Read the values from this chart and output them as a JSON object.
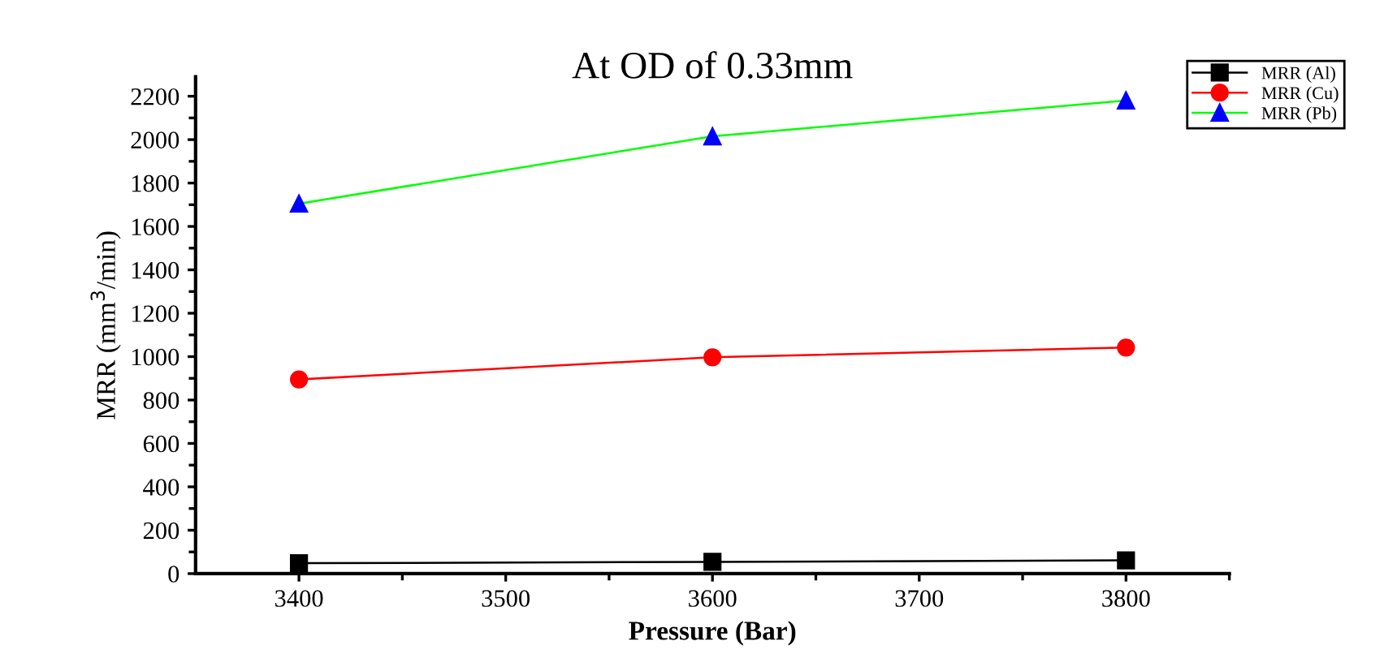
{
  "chart_data": {
    "type": "line",
    "title": "At OD of 0.33mm",
    "xlabel": "Pressure (Bar)",
    "ylabel": "MRR (mm$^{3}$/min)",
    "x": [
      3400,
      3600,
      3800
    ],
    "series": [
      {
        "name": "MRR (Al)",
        "color": "#000000",
        "marker": "square",
        "values": [
          48,
          54,
          61
        ]
      },
      {
        "name": "MRR (Cu)",
        "color": "#ff0000",
        "marker": "circle",
        "values": [
          895,
          997,
          1042
        ]
      },
      {
        "name": "MRR (Pb)",
        "color": "#00ff00",
        "colors": [
          "#0000ff",
          "#0000ff",
          "#0000ff"
        ],
        "marker": "triangle",
        "values": [
          1705,
          2015,
          2180
        ]
      }
    ],
    "xlim": [
      3350,
      3850
    ],
    "xticks": [
      3400,
      3500,
      3600,
      3700,
      3800
    ],
    "ylim": [
      0,
      2290
    ],
    "yticks": [
      0,
      200,
      400,
      600,
      800,
      1000,
      1200,
      1400,
      1600,
      1800,
      2000,
      2200
    ],
    "grid": false,
    "legend": "top right",
    "line_style": "solid"
  }
}
